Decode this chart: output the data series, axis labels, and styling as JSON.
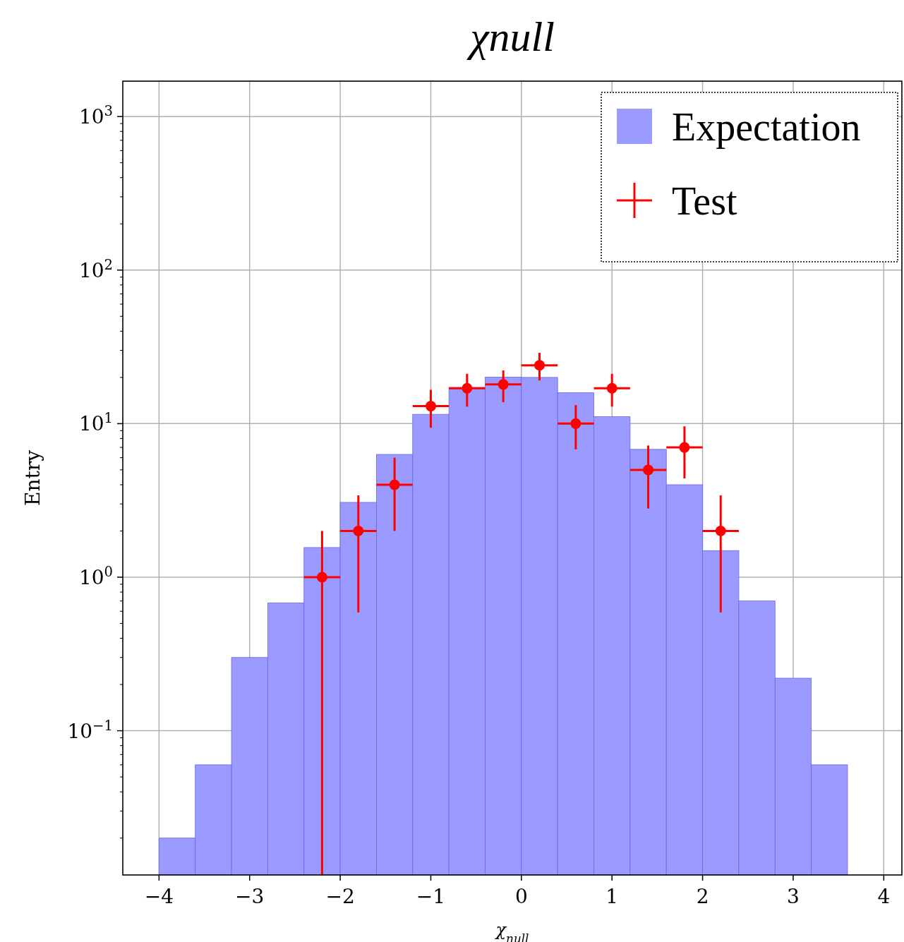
{
  "chart_data": {
    "type": "histogram",
    "title": "χnull",
    "xlabel": "χ$_{null}$",
    "ylabel": "Entry",
    "xlim": [
      -4.4,
      4.2
    ],
    "xticks": [
      {
        "value": -4,
        "label": "−4"
      },
      {
        "value": -3,
        "label": "−3"
      },
      {
        "value": -2,
        "label": "−2"
      },
      {
        "value": -1,
        "label": "−1"
      },
      0,
      1,
      2,
      3,
      4
    ],
    "ylim": [
      0.0115,
      1700
    ],
    "yticks": [
      {
        "value": 0.1,
        "label": "10$^{−1}$"
      },
      {
        "value": 1,
        "label": "10$^{0}$"
      },
      {
        "value": 10,
        "label": "10$^{1}$"
      },
      {
        "value": 100,
        "label": "10$^{2}$"
      },
      {
        "value": 1000,
        "label": "10$^{3}$"
      }
    ],
    "log": "y",
    "grid": true,
    "legend": "top right",
    "series": [
      {
        "name": "Expectation",
        "color": "#9a9aff",
        "bins": [
          -4,
          -3.6,
          -3.2,
          -2.8,
          -2.4,
          -2,
          -1.6,
          -1.2,
          -0.8,
          -0.4,
          0,
          0.4,
          0.8,
          1.2,
          1.6,
          2,
          2.4,
          2.8,
          3.2,
          3.6
        ],
        "values": [
          0.02,
          0.06,
          0.3,
          0.68,
          1.56,
          3.07,
          6.3,
          11.5,
          17.2,
          20.1,
          20,
          15.9,
          11.1,
          6.8,
          4,
          1.49,
          0.7,
          0.22,
          0.06
        ]
      },
      {
        "name": "Test",
        "type": "scatter",
        "color": "#ff0000",
        "marker": "circle",
        "x": [
          -2.2,
          -1.8,
          -1.4,
          -1,
          -0.6,
          -0.2,
          0.2,
          0.6,
          1,
          1.4,
          1.8,
          2.2
        ],
        "values": [
          1,
          2,
          4,
          13,
          17,
          18,
          24,
          10,
          17,
          5,
          7,
          2
        ],
        "errors": [
          [
            0.0115,
            2
          ],
          1.41,
          2,
          3.6,
          4.1,
          4.2,
          4.9,
          3.2,
          4.1,
          2.2,
          2.6,
          1.41
        ],
        "xerrors": [
          0.2,
          0.2,
          0.2,
          0.2,
          0.2,
          0.2,
          0.2,
          0.2,
          0.2,
          0.2,
          0.2,
          0.2
        ]
      }
    ]
  }
}
